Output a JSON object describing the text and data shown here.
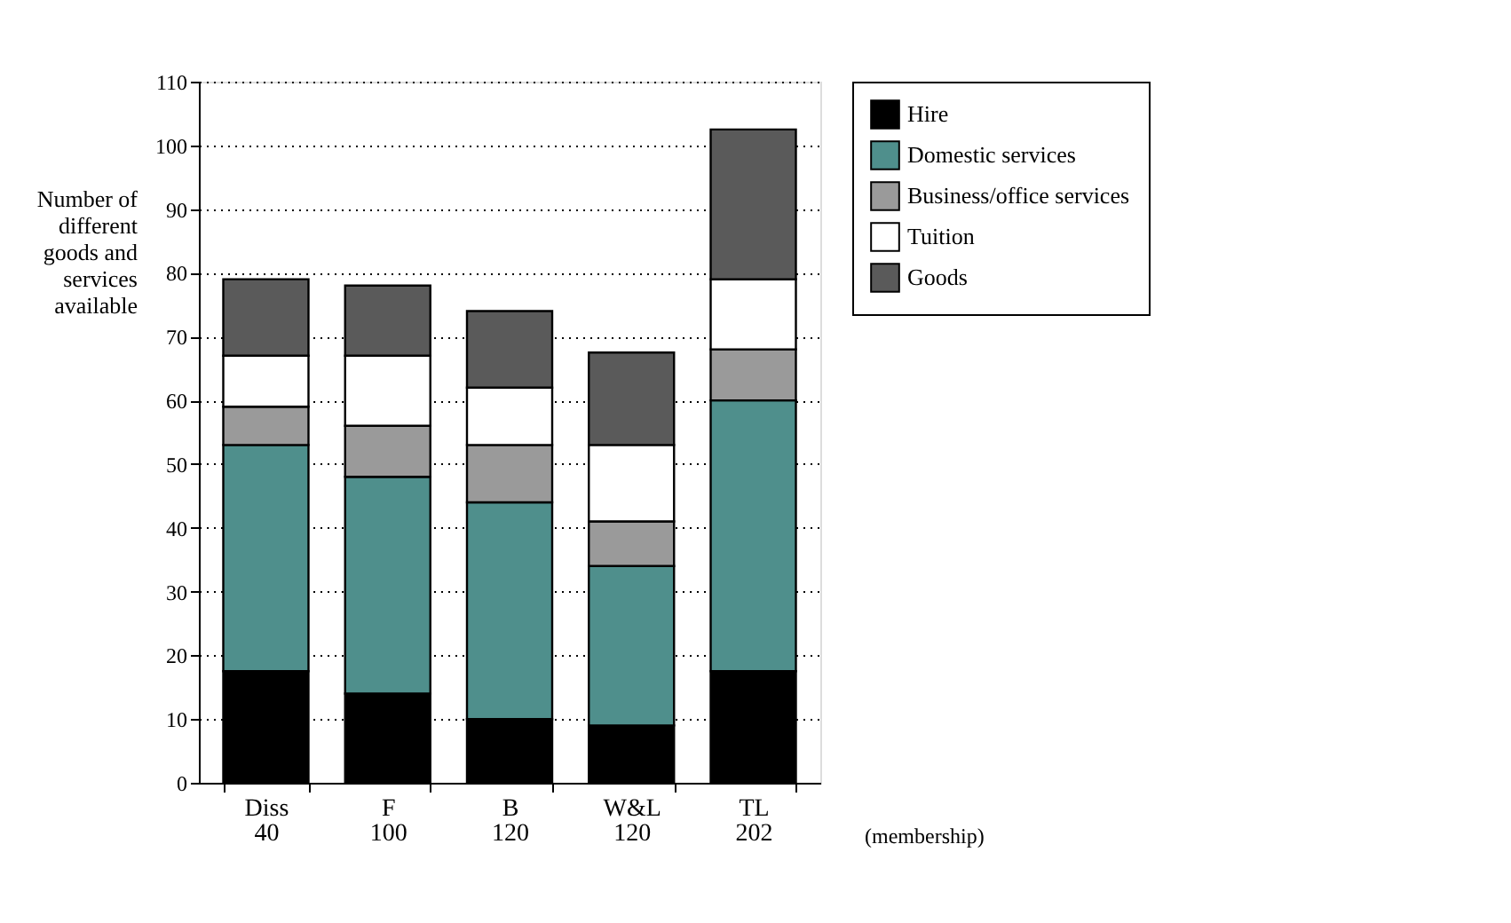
{
  "chart_data": {
    "type": "bar",
    "stacked": true,
    "ylabel": "Number of\ndifferent\ngoods and\nservices\navailable",
    "categories": [
      "Diss\n40",
      "F\n100",
      "B\n120",
      "W&L\n120",
      "TL\n202"
    ],
    "series": [
      {
        "name": "Hire",
        "color": "#000000",
        "values": [
          17.5,
          14,
          10,
          9,
          17.5
        ]
      },
      {
        "name": "Domestic services",
        "color": "#4f8f8c",
        "values": [
          35.5,
          34,
          34,
          25,
          42.5
        ]
      },
      {
        "name": "Business/office services",
        "color": "#9a9a9a",
        "values": [
          6,
          8,
          9,
          7,
          8
        ]
      },
      {
        "name": "Tuition",
        "color": "#ffffff",
        "values": [
          8,
          11,
          9,
          12,
          11
        ]
      },
      {
        "name": "Goods",
        "color": "#5a5a5a",
        "values": [
          12,
          11,
          12,
          14.5,
          23.5
        ]
      }
    ],
    "ylim": [
      0,
      110
    ],
    "yticks": [
      0,
      10,
      20,
      30,
      40,
      50,
      60,
      70,
      80,
      90,
      100,
      110
    ],
    "grid": "y",
    "legend": "right",
    "annotations": [
      "(membership)"
    ]
  }
}
